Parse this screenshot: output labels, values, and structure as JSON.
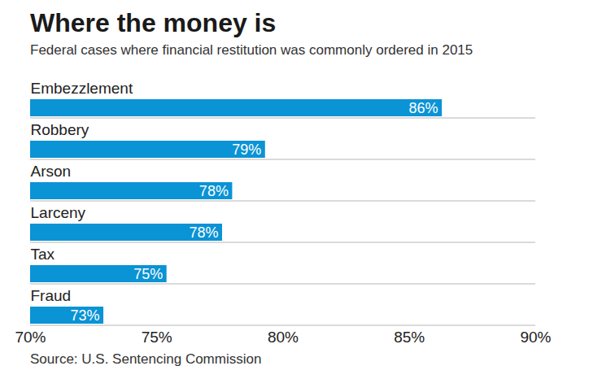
{
  "chart_data": {
    "type": "bar",
    "orientation": "horizontal",
    "title": "Where the money is",
    "subtitle": "Federal cases where financial restitution was commonly ordered in 2015",
    "caption": "Source: U.S. Sentencing Commission",
    "categories": [
      "Embezzlement",
      "Robbery",
      "Arson",
      "Larceny",
      "Tax",
      "Fraud"
    ],
    "values": [
      86.3,
      79.3,
      78.0,
      77.6,
      75.4,
      72.9
    ],
    "value_labels": [
      "86%",
      "79%",
      "78%",
      "78%",
      "75%",
      "73%"
    ],
    "data_labels": true,
    "color": "#0a93d5",
    "xlim": [
      70,
      90
    ],
    "xticks": [
      {
        "value": 70,
        "label": "70%"
      },
      {
        "value": 75,
        "label": "75%"
      },
      {
        "value": 80,
        "label": "80%"
      },
      {
        "value": 85,
        "label": "85%"
      },
      {
        "value": 90,
        "label": "90%"
      }
    ],
    "grid": false
  }
}
